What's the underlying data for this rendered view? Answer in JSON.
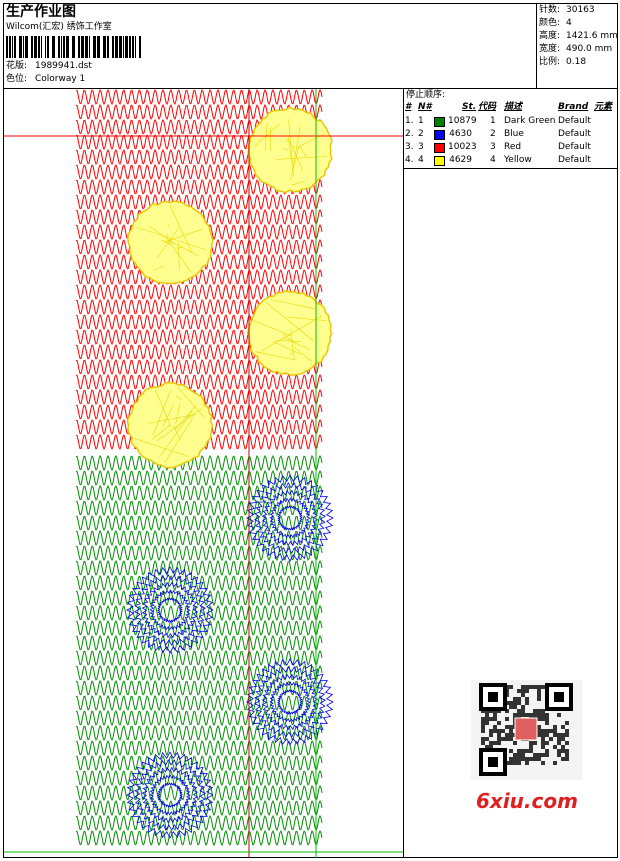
{
  "header": {
    "title": "生产作业图",
    "studio": "Wilcom(汇宏) 绣饰工作室",
    "design_label": "花版:",
    "design": "1989941.dst",
    "colorway_label": "色位:",
    "colorway": "Colorway 1"
  },
  "info": [
    {
      "label": "针数:",
      "value": "30163"
    },
    {
      "label": "颜色:",
      "value": "4"
    },
    {
      "label": "高度:",
      "value": "1421.6 mm"
    },
    {
      "label": "宽度:",
      "value": "490.0 mm"
    },
    {
      "label": "比例:",
      "value": "0.18"
    }
  ],
  "stop_sequence": {
    "title": "停止顺序:",
    "columns": [
      "#",
      "N#",
      "St.",
      "代码",
      "描述",
      "Brand",
      "元素"
    ],
    "rows": [
      {
        "index": "1.",
        "n": "1",
        "color": "#008000",
        "stitches": "10879",
        "code": "1",
        "description": "Dark Green",
        "brand": "Default"
      },
      {
        "index": "2.",
        "n": "2",
        "color": "#0000ff",
        "stitches": "4630",
        "code": "2",
        "description": "Blue",
        "brand": "Default"
      },
      {
        "index": "3.",
        "n": "3",
        "color": "#ff0000",
        "stitches": "10023",
        "code": "3",
        "description": "Red",
        "brand": "Default"
      },
      {
        "index": "4.",
        "n": "4",
        "color": "#ffff00",
        "stitches": "4629",
        "code": "4",
        "description": "Yellow",
        "brand": "Default"
      }
    ]
  },
  "watermark": "6xiu.com"
}
